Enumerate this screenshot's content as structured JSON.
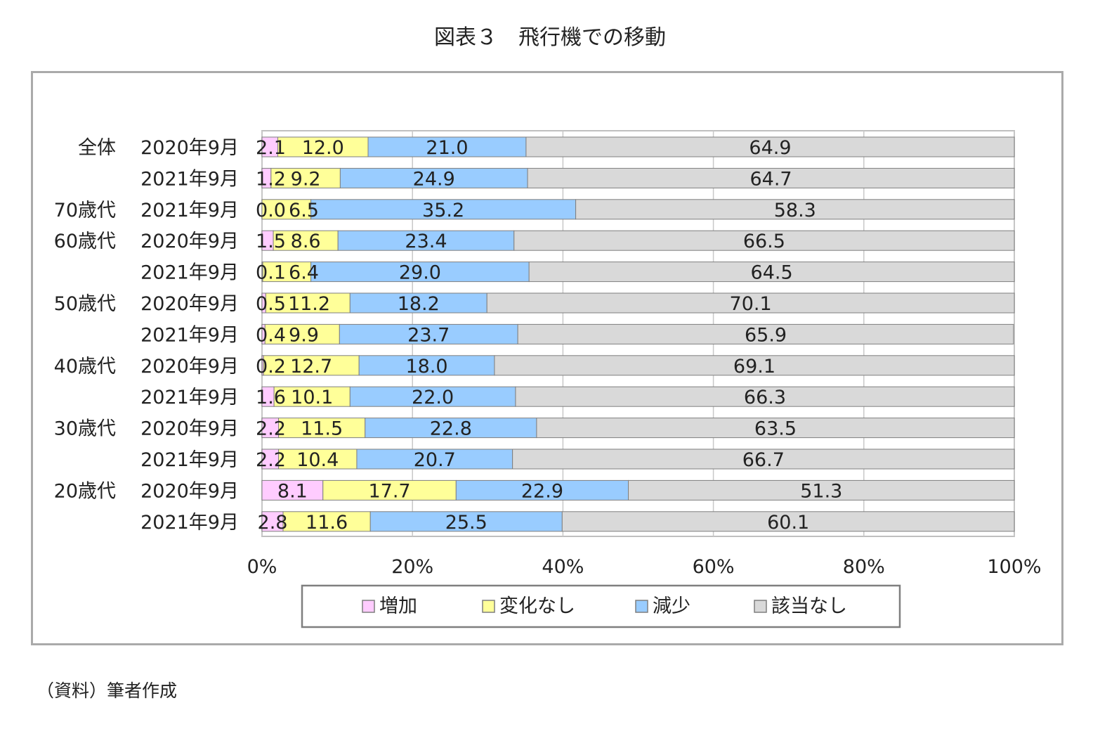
{
  "title": "図表３　飛行機での移動",
  "source": "（資料）筆者作成",
  "colors": {
    "increase": "#ffccff",
    "no_change": "#ffff99",
    "decrease": "#99ccff",
    "not_applicable": "#d9d9d9"
  },
  "chart_data": {
    "type": "bar",
    "orientation": "horizontal-stacked-100",
    "title": "図表３　飛行機での移動",
    "xlim": [
      0,
      100
    ],
    "x_ticks": [
      "0%",
      "20%",
      "40%",
      "60%",
      "80%",
      "100%"
    ],
    "legend_position": "bottom",
    "categories": [
      {
        "group": "全体",
        "date": "2020年9月"
      },
      {
        "group": "",
        "date": "2021年9月"
      },
      {
        "group": "70歳代",
        "date": "2021年9月"
      },
      {
        "group": "60歳代",
        "date": "2020年9月"
      },
      {
        "group": "",
        "date": "2021年9月"
      },
      {
        "group": "50歳代",
        "date": "2020年9月"
      },
      {
        "group": "",
        "date": "2021年9月"
      },
      {
        "group": "40歳代",
        "date": "2020年9月"
      },
      {
        "group": "",
        "date": "2021年9月"
      },
      {
        "group": "30歳代",
        "date": "2020年9月"
      },
      {
        "group": "",
        "date": "2021年9月"
      },
      {
        "group": "20歳代",
        "date": "2020年9月"
      },
      {
        "group": "",
        "date": "2021年9月"
      }
    ],
    "series": [
      {
        "name": "増加",
        "color": "#ffccff",
        "values": [
          2.1,
          1.2,
          0.0,
          1.5,
          0.1,
          0.5,
          0.4,
          0.2,
          1.6,
          2.2,
          2.2,
          8.1,
          2.8
        ],
        "labels": [
          "2.1",
          "1.2",
          "0.0",
          "1.5",
          "0.1",
          "0.5",
          "0.4",
          "0.2",
          "1.6",
          "2.2",
          "2.2",
          "8.1",
          "2.8"
        ]
      },
      {
        "name": "変化なし",
        "color": "#ffff99",
        "values": [
          12.0,
          9.2,
          6.5,
          8.6,
          6.4,
          11.2,
          9.9,
          12.7,
          10.1,
          11.5,
          10.4,
          17.7,
          11.6
        ],
        "labels": [
          "12.0",
          "9.2",
          "6.5",
          "8.6",
          "6.4",
          "11.2",
          "9.9",
          "12.7",
          "10.1",
          "11.5",
          "10.4",
          "17.7",
          "11.6"
        ]
      },
      {
        "name": "減少",
        "color": "#99ccff",
        "values": [
          21.0,
          24.9,
          35.2,
          23.4,
          29.0,
          18.2,
          23.7,
          18.0,
          22.0,
          22.8,
          20.7,
          22.9,
          25.5
        ],
        "labels": [
          "21.0",
          "24.9",
          "35.2",
          "23.4",
          "29.0",
          "18.2",
          "23.7",
          "18.0",
          "22.0",
          "22.8",
          "20.7",
          "22.9",
          "25.5"
        ]
      },
      {
        "name": "該当なし",
        "color": "#d9d9d9",
        "values": [
          64.9,
          64.7,
          58.3,
          66.5,
          64.5,
          70.1,
          65.9,
          69.1,
          66.3,
          63.5,
          66.7,
          51.3,
          60.1
        ],
        "labels": [
          "64.9",
          "64.7",
          "58.3",
          "66.5",
          "64.5",
          "70.1",
          "65.9",
          "69.1",
          "66.3",
          "63.5",
          "66.7",
          "51.3",
          "60.1"
        ]
      }
    ]
  }
}
